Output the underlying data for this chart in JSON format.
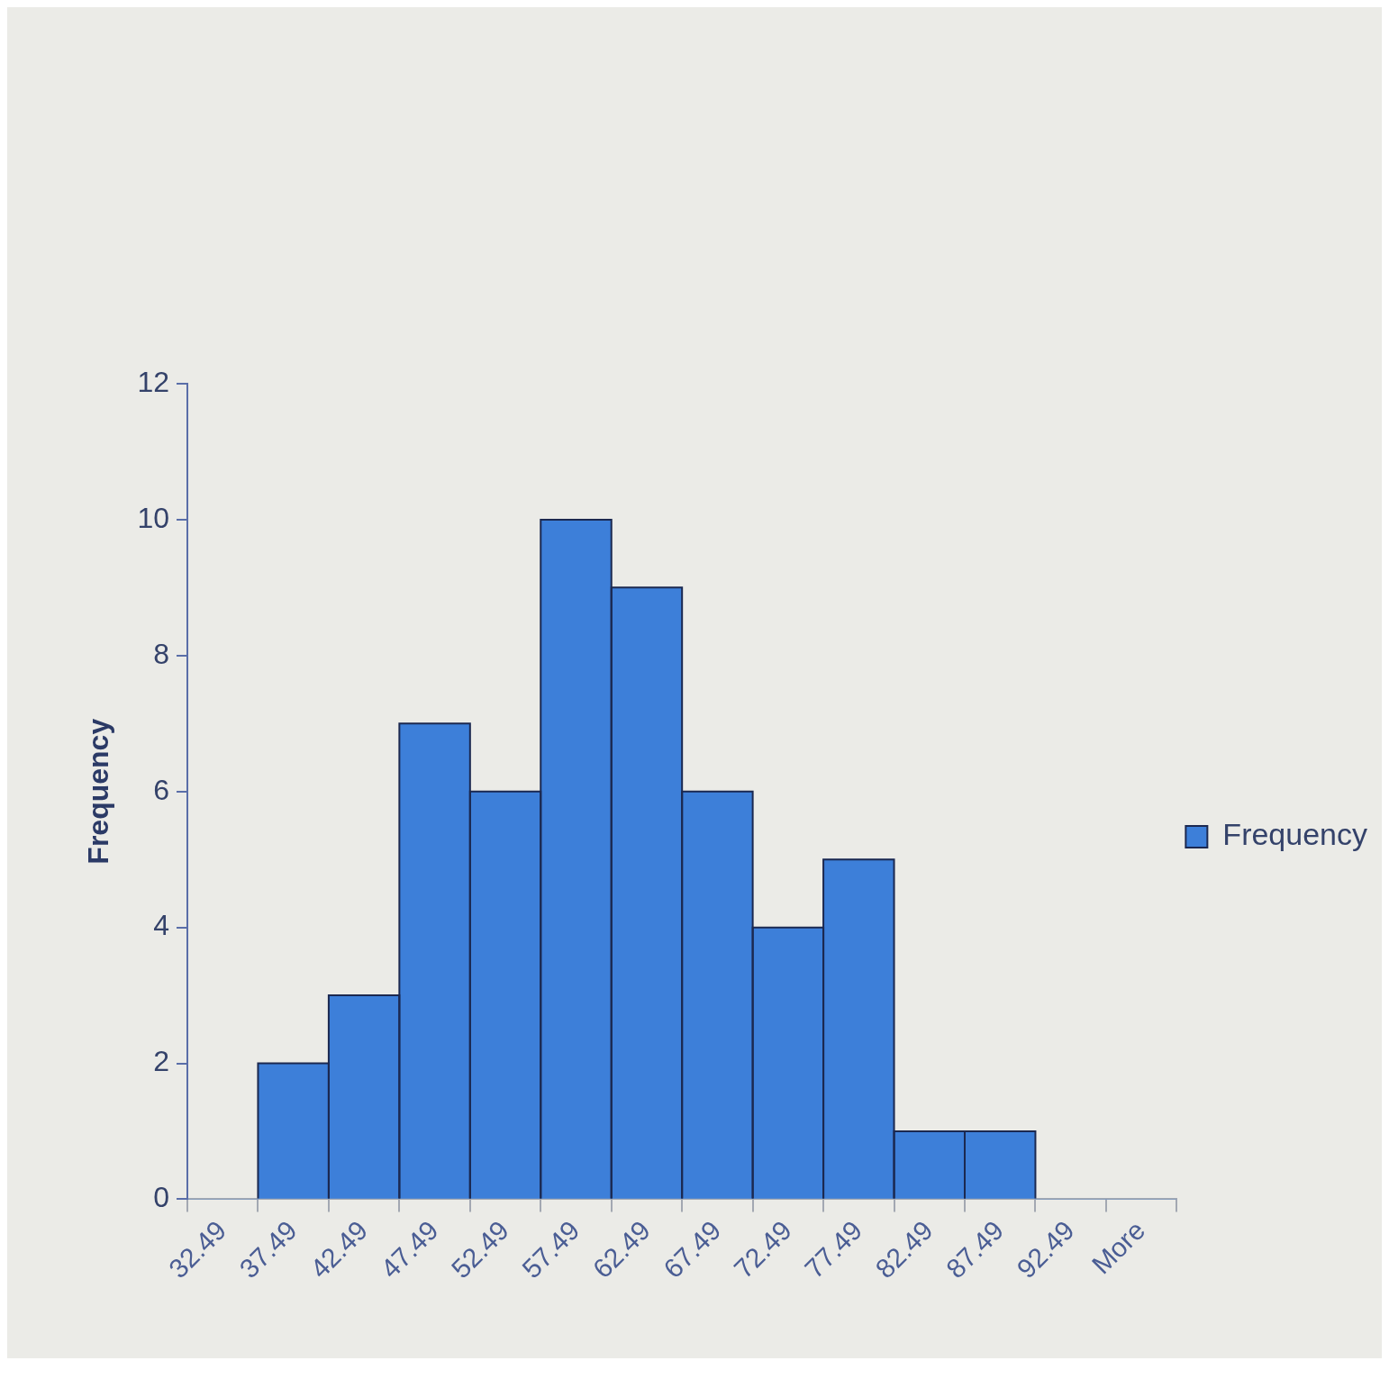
{
  "chart_data": {
    "type": "bar",
    "ylabel": "Frequency",
    "categories": [
      "32.49",
      "37.49",
      "42.49",
      "47.49",
      "52.49",
      "57.49",
      "62.49",
      "67.49",
      "72.49",
      "77.49",
      "82.49",
      "87.49",
      "92.49",
      "More"
    ],
    "series": [
      {
        "name": "Frequency",
        "color": "#3d7fd9",
        "values": [
          0,
          2,
          3,
          7,
          6,
          10,
          9,
          6,
          4,
          5,
          1,
          1,
          0,
          0
        ]
      }
    ],
    "ylim": [
      0,
      12
    ],
    "yticks": [
      0,
      2,
      4,
      6,
      8,
      10,
      12
    ],
    "grid": false,
    "legend": "right"
  }
}
